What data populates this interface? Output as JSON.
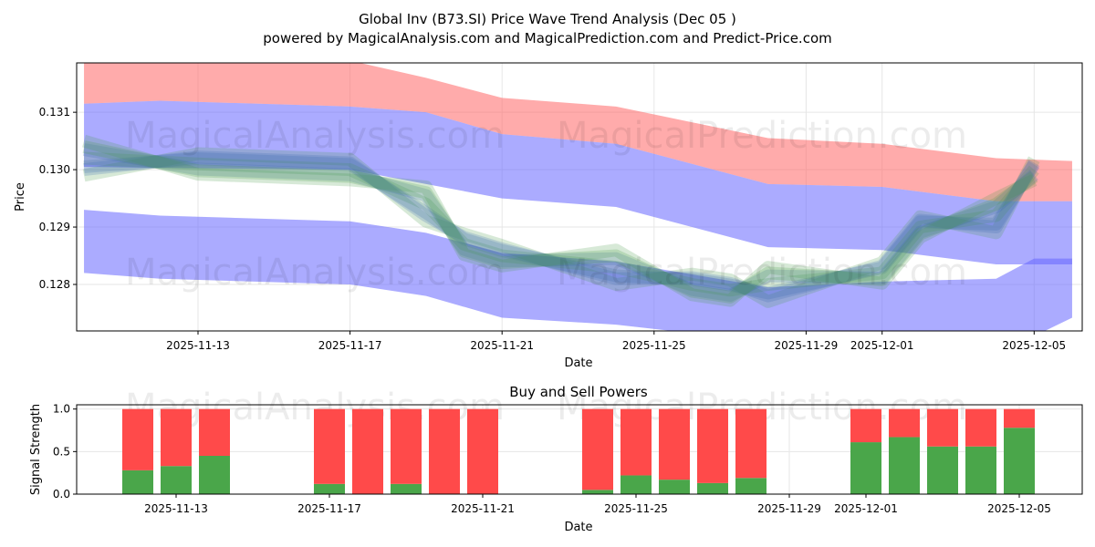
{
  "chart_data": [
    {
      "type": "area",
      "title": "Global Inv (B73.SI) Price Wave Trend Analysis (Dec 05 )",
      "subtitle": "powered by MagicalAnalysis.com and MagicalPrediction.com and Predict-Price.com",
      "xlabel": "Date",
      "ylabel": "Price",
      "ylim": [
        0.12719,
        0.13186
      ],
      "xlim": [
        "2025-11-10",
        "2025-12-06"
      ],
      "grid": true,
      "xticks": [
        "2025-11-13",
        "2025-11-17",
        "2025-11-21",
        "2025-11-25",
        "2025-11-29",
        "2025-12-01",
        "2025-12-05"
      ],
      "yticks": [
        0.128,
        0.129,
        0.13,
        0.131
      ],
      "ytick_labels": [
        "0.128",
        "0.129",
        "0.130",
        "0.131"
      ],
      "watermarks": [
        "MagicalAnalysis.com",
        "MagicalPrediction.com"
      ],
      "bands": [
        {
          "name": "red-band",
          "color": "#ff6666",
          "opacity": 0.55,
          "dates": [
            "2025-11-10",
            "2025-11-12",
            "2025-11-17",
            "2025-11-19",
            "2025-11-21",
            "2025-11-24",
            "2025-11-28",
            "2025-12-01",
            "2025-12-04",
            "2025-12-06"
          ],
          "upper": [
            0.132,
            0.132,
            0.1319,
            0.1316,
            0.13125,
            0.1311,
            0.13055,
            0.13045,
            0.1302,
            0.13015
          ],
          "lower": [
            0.13115,
            0.1312,
            0.1311,
            0.131,
            0.13062,
            0.13045,
            0.12975,
            0.1297,
            0.12945,
            0.12945
          ]
        },
        {
          "name": "blue-upper-band",
          "color": "#6666ff",
          "opacity": 0.55,
          "dates": [
            "2025-11-10",
            "2025-11-12",
            "2025-11-17",
            "2025-11-19",
            "2025-11-21",
            "2025-11-24",
            "2025-11-28",
            "2025-12-01",
            "2025-12-04",
            "2025-12-06"
          ],
          "upper": [
            0.13115,
            0.1312,
            0.1311,
            0.131,
            0.13062,
            0.13045,
            0.12975,
            0.1297,
            0.12945,
            0.12945
          ],
          "lower": [
            0.13005,
            0.13003,
            0.13,
            0.12975,
            0.1295,
            0.12935,
            0.12865,
            0.1286,
            0.12835,
            0.12835
          ]
        },
        {
          "name": "blue-lower-band",
          "color": "#6666ff",
          "opacity": 0.55,
          "dates": [
            "2025-11-10",
            "2025-11-12",
            "2025-11-17",
            "2025-11-19",
            "2025-11-21",
            "2025-11-24",
            "2025-11-28",
            "2025-12-01",
            "2025-12-04",
            "2025-12-05",
            "2025-12-06"
          ],
          "upper": [
            0.1293,
            0.1292,
            0.1291,
            0.1289,
            0.12855,
            0.1284,
            0.12795,
            0.12805,
            0.1281,
            0.12845,
            0.12845
          ],
          "lower": [
            0.1282,
            0.1281,
            0.128,
            0.1278,
            0.12742,
            0.1273,
            0.127,
            0.127,
            0.127,
            0.1271,
            0.12742
          ]
        }
      ],
      "wave": {
        "dates": [
          "2025-11-10",
          "2025-11-13",
          "2025-11-17",
          "2025-11-19",
          "2025-11-20",
          "2025-11-21",
          "2025-11-24",
          "2025-11-26",
          "2025-11-27",
          "2025-11-28",
          "2025-12-01",
          "2025-12-02",
          "2025-12-04",
          "2025-12-05"
        ],
        "values": [
          0.1302,
          0.1301,
          0.13,
          0.1294,
          0.1287,
          0.1285,
          0.1283,
          0.128,
          0.1279,
          0.128,
          0.1282,
          0.129,
          0.1292,
          0.13
        ],
        "offsets": [
          -0.0003,
          -0.00015,
          0,
          0.00015,
          0.0003,
          -0.0002,
          0.0002
        ],
        "colors": [
          "#4a9a4a",
          "#3a6ab0"
        ]
      }
    },
    {
      "type": "bar",
      "title": "Buy and Sell Powers",
      "xlabel": "Date",
      "ylabel": "Signal Strength",
      "ylim": [
        0,
        1.05
      ],
      "yticks": [
        0,
        0.5,
        1
      ],
      "ytick_labels": [
        "0.0",
        "0.5",
        "1.0"
      ],
      "xticks": [
        "2025-11-13",
        "2025-11-17",
        "2025-11-21",
        "2025-11-25",
        "2025-11-29",
        "2025-12-01",
        "2025-12-05"
      ],
      "categories": [
        "2025-11-12",
        "2025-11-13",
        "2025-11-14",
        "2025-11-17",
        "2025-11-18",
        "2025-11-19",
        "2025-11-20",
        "2025-11-21",
        "2025-11-24",
        "2025-11-25",
        "2025-11-26",
        "2025-11-27",
        "2025-11-28",
        "2025-12-01",
        "2025-12-02",
        "2025-12-03",
        "2025-12-04",
        "2025-12-05"
      ],
      "series": [
        {
          "name": "Buy",
          "color": "#4aa64a",
          "values": [
            0.28,
            0.33,
            0.45,
            0.12,
            0.0,
            0.12,
            0.0,
            0.0,
            0.05,
            0.22,
            0.17,
            0.13,
            0.19,
            0.61,
            0.67,
            0.56,
            0.56,
            0.78
          ]
        },
        {
          "name": "Sell",
          "color": "#ff4a4a",
          "values": [
            0.72,
            0.67,
            0.55,
            0.88,
            1.0,
            0.88,
            1.0,
            1.0,
            0.95,
            0.78,
            0.83,
            0.87,
            0.81,
            0.39,
            0.33,
            0.44,
            0.44,
            0.22
          ]
        }
      ],
      "watermarks": [
        "MagicalAnalysis.com",
        "MagicalPrediction.com"
      ]
    }
  ]
}
